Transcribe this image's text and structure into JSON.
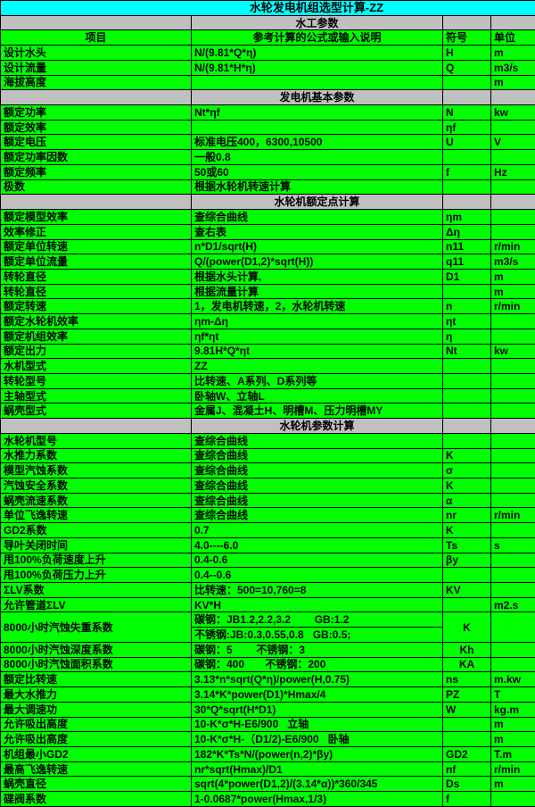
{
  "title": "水轮发电机组选型计算-ZZ",
  "colors": {
    "title_bg": "#00ffff",
    "section_bg": "#c0c0c0",
    "cell_bg": "#00ff00",
    "grid": "#000000",
    "text": "#000000"
  },
  "columns": [
    "项目",
    "参考计算的公式或输入说明",
    "符号",
    "单位"
  ],
  "rows": [
    {
      "t": "section",
      "text": "水工参数"
    },
    {
      "t": "header"
    },
    {
      "t": "row",
      "c": [
        "设计水头",
        "N/(9.81*Q*η)",
        "H",
        "m"
      ]
    },
    {
      "t": "row",
      "c": [
        "设计流量",
        "N/(9.81*H*η)",
        "Q",
        "m3/s"
      ]
    },
    {
      "t": "row",
      "c": [
        "海拔高度",
        "",
        "",
        "m"
      ]
    },
    {
      "t": "section",
      "text": "发电机基本参数"
    },
    {
      "t": "row",
      "c": [
        "额定功率",
        "Nt*ηf",
        "N",
        "kw"
      ]
    },
    {
      "t": "row",
      "c": [
        "额定效率",
        "",
        "ηf",
        ""
      ]
    },
    {
      "t": "row",
      "c": [
        "额定电压",
        "标准电压400，6300,10500",
        "U",
        "V"
      ]
    },
    {
      "t": "row",
      "c": [
        "额定功率因数",
        "一般0.8",
        "",
        ""
      ]
    },
    {
      "t": "row",
      "c": [
        "额定频率",
        "50或60",
        "f",
        "Hz"
      ]
    },
    {
      "t": "row",
      "c": [
        "极数",
        "根据水轮机转速计算",
        "",
        ""
      ]
    },
    {
      "t": "section",
      "text": "水轮机额定点计算"
    },
    {
      "t": "row",
      "c": [
        "额定模型效率",
        "查综合曲线",
        "ηm",
        ""
      ]
    },
    {
      "t": "row",
      "c": [
        "效率修正",
        "查右表",
        "Δη",
        ""
      ]
    },
    {
      "t": "row",
      "c": [
        "额定单位转速",
        "n*D1/sqrt(H)",
        "n11",
        "r/min"
      ]
    },
    {
      "t": "row",
      "c": [
        "额定单位流量",
        "Q/(power(D1,2)*sqrt(H))",
        "q11",
        "m3/s"
      ]
    },
    {
      "t": "row",
      "c": [
        "转轮直径",
        "根据水头计算,",
        "D1",
        "m"
      ]
    },
    {
      "t": "row",
      "c": [
        "转轮直径",
        "根据流量计算",
        "",
        "m"
      ]
    },
    {
      "t": "row",
      "c": [
        "额定转速",
        "1，发电机转速，2，水轮机转速",
        "n",
        "r/min"
      ]
    },
    {
      "t": "row",
      "c": [
        "额定水轮机效率",
        "ηm-Δη",
        "ηt",
        ""
      ]
    },
    {
      "t": "row",
      "c": [
        "额定机组效率",
        "ηf*ηt",
        "η",
        ""
      ]
    },
    {
      "t": "row",
      "c": [
        "额定出力",
        "9.81H*Q*ηt",
        "Nt",
        "kw"
      ]
    },
    {
      "t": "row",
      "c": [
        "水机型式",
        "ZZ",
        "",
        ""
      ]
    },
    {
      "t": "row",
      "c": [
        "转轮型号",
        "比转速、A系列、D系列等",
        "",
        ""
      ]
    },
    {
      "t": "row",
      "c": [
        "主轴型式",
        "卧轴W、立轴L",
        "",
        ""
      ]
    },
    {
      "t": "row",
      "c": [
        "蜗壳型式",
        "金属J、混凝土H、明槽M、压力明槽MY",
        "",
        ""
      ]
    },
    {
      "t": "section",
      "text": "水轮机参数计算"
    },
    {
      "t": "row",
      "c": [
        "水轮机型号",
        "查综合曲线",
        "",
        ""
      ]
    },
    {
      "t": "row",
      "c": [
        "水推力系数",
        "查综合曲线",
        "K",
        ""
      ]
    },
    {
      "t": "row",
      "c": [
        "模型汽蚀系数",
        "查综合曲线",
        "σ",
        ""
      ]
    },
    {
      "t": "row",
      "c": [
        "汽蚀安全系数",
        "查综合曲线",
        "K",
        ""
      ]
    },
    {
      "t": "row",
      "c": [
        "蜗壳流速系数",
        "查综合曲线",
        "α",
        ""
      ]
    },
    {
      "t": "row",
      "c": [
        "单位飞逸转速",
        "查综合曲线",
        "nr",
        "r/min"
      ]
    },
    {
      "t": "row",
      "c": [
        "GD2系数",
        "0.7",
        "K",
        ""
      ]
    },
    {
      "t": "row",
      "c": [
        "导叶关闭时间",
        "4.0----6.0",
        "Ts",
        "s"
      ]
    },
    {
      "t": "row",
      "c": [
        "甩100%负荷速度上升",
        "0.4-0.6",
        "βy",
        ""
      ]
    },
    {
      "t": "row",
      "c": [
        "甩100%负荷压力上升",
        "0.4--0.6",
        "",
        ""
      ]
    },
    {
      "t": "row",
      "c": [
        "ΣLV系数",
        "比转速：500=10,760=8",
        "KV",
        ""
      ]
    },
    {
      "t": "row",
      "c": [
        "允许管道ΣLV",
        "KV*H",
        "",
        "m2.s"
      ]
    },
    {
      "t": "row2",
      "label": "8000小时汽蚀失重系数",
      "f1": "碳钢：JB1.2,2.2,3.2        GB:1.2",
      "f2": "不锈钢:JB:0.3,0.55,0.8   GB:0.5;",
      "sym": "K",
      "unit": "",
      "symCenter": true
    },
    {
      "t": "row",
      "c": [
        "8000小时汽蚀深度系数",
        "碳钢：5        不锈钢：3",
        "Kh",
        ""
      ],
      "symCenter": true
    },
    {
      "t": "row",
      "c": [
        "8000小时汽蚀面积系数",
        "碳钢：400       不锈钢：200",
        "KA",
        ""
      ],
      "symCenter": true
    },
    {
      "t": "row",
      "c": [
        "额定比转速",
        "3.13*n*sqrt(Q*η)/power(H,0.75)",
        "ns",
        "m.kw"
      ]
    },
    {
      "t": "row",
      "c": [
        "最大水推力",
        "3.14*K*power(D1)*Hmax/4",
        "PZ",
        "T"
      ]
    },
    {
      "t": "row",
      "c": [
        "最大调速功",
        "30*Q*sqrt(H*D1)",
        "W",
        "kg.m"
      ]
    },
    {
      "t": "row",
      "c": [
        "允许吸出高度",
        "10-K*σ*H-E6/900   立轴",
        "",
        "m"
      ]
    },
    {
      "t": "row",
      "c": [
        "允许吸出高度",
        "10-K*σ*H-（D1/2)-E6/900   卧轴",
        "",
        "m"
      ]
    },
    {
      "t": "row",
      "c": [
        "机组最小GD2",
        "182*K*Ts*N/(power(n,2)*βy)",
        "GD2",
        "T.m"
      ]
    },
    {
      "t": "row",
      "c": [
        "最高飞逸转速",
        "nr*sqrt(Hmax)/D1",
        "nf",
        "r/min"
      ]
    },
    {
      "t": "row",
      "c": [
        "蜗壳直径",
        "sqrt(4*power(D1,2)/(3.14*α))*360/345",
        "Ds",
        "m"
      ]
    },
    {
      "t": "row",
      "c": [
        "碟阀系数",
        "1-0.0687*power(Hmax,1/3)",
        "f",
        ""
      ]
    }
  ]
}
